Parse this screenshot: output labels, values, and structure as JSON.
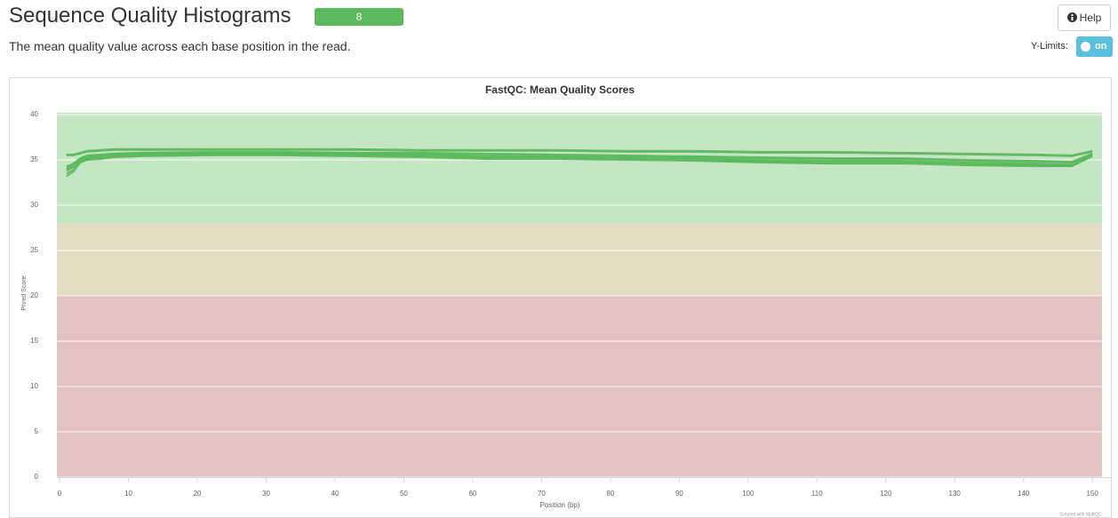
{
  "header": {
    "title": "Sequence Quality Histograms",
    "badge": "8",
    "description": "The mean quality value across each base position in the read.",
    "help": "Help",
    "ylimits_label": "Y-Limits:",
    "toggle": "on"
  },
  "chart_data": {
    "type": "line",
    "title": "FastQC: Mean Quality Scores",
    "x_label": "Position (bp)",
    "y_label": "Phred Score",
    "credit": "Created with MultiQC",
    "x": [
      1,
      2,
      3,
      4,
      6,
      8,
      12,
      22,
      32,
      42,
      52,
      62,
      72,
      82,
      92,
      102,
      112,
      122,
      132,
      142,
      147,
      150
    ],
    "series": [
      {
        "color": "#5cb85c",
        "values": [
          35.6,
          35.6,
          35.8,
          36.0,
          36.1,
          36.2,
          36.2,
          36.2,
          36.2,
          36.2,
          36.1,
          36.1,
          36.1,
          36.0,
          36.0,
          35.9,
          35.9,
          35.8,
          35.7,
          35.6,
          35.5,
          36.0
        ]
      },
      {
        "color": "#5cb85c",
        "values": [
          35.5,
          35.5,
          35.7,
          35.9,
          36.0,
          36.1,
          36.1,
          36.1,
          36.1,
          36.1,
          36.0,
          36.0,
          36.0,
          35.9,
          35.9,
          35.8,
          35.8,
          35.7,
          35.6,
          35.5,
          35.4,
          35.9
        ]
      },
      {
        "color": "#5cb85c",
        "values": [
          34.3,
          34.6,
          35.2,
          35.5,
          35.6,
          35.7,
          35.8,
          35.9,
          35.9,
          35.8,
          35.8,
          35.7,
          35.6,
          35.5,
          35.4,
          35.3,
          35.2,
          35.2,
          35.0,
          34.9,
          34.8,
          35.7
        ]
      },
      {
        "color": "#5cb85c",
        "values": [
          34.1,
          34.5,
          35.1,
          35.4,
          35.5,
          35.7,
          35.8,
          35.8,
          35.8,
          35.8,
          35.7,
          35.6,
          35.5,
          35.4,
          35.3,
          35.2,
          35.1,
          35.1,
          34.9,
          34.8,
          34.7,
          35.6
        ]
      },
      {
        "color": "#5cb85c",
        "values": [
          34.0,
          34.3,
          35.0,
          35.3,
          35.4,
          35.6,
          35.7,
          35.7,
          35.7,
          35.7,
          35.6,
          35.4,
          35.4,
          35.3,
          35.2,
          35.0,
          34.9,
          34.9,
          34.7,
          34.6,
          34.5,
          35.6
        ]
      },
      {
        "color": "#5cb85c",
        "values": [
          33.8,
          34.2,
          34.9,
          35.2,
          35.3,
          35.5,
          35.6,
          35.7,
          35.7,
          35.6,
          35.5,
          35.3,
          35.3,
          35.2,
          35.1,
          34.9,
          34.8,
          34.8,
          34.6,
          34.5,
          34.4,
          35.5
        ]
      },
      {
        "color": "#5cb85c",
        "values": [
          33.5,
          33.9,
          34.8,
          35.1,
          35.2,
          35.4,
          35.5,
          35.6,
          35.6,
          35.5,
          35.4,
          35.2,
          35.2,
          35.1,
          35.0,
          34.8,
          34.7,
          34.7,
          34.5,
          34.4,
          34.3,
          35.5
        ]
      },
      {
        "color": "#5cb85c",
        "values": [
          33.2,
          33.7,
          34.7,
          35.0,
          35.1,
          35.3,
          35.4,
          35.5,
          35.5,
          35.4,
          35.3,
          35.1,
          35.1,
          35.0,
          34.9,
          34.7,
          34.6,
          34.6,
          34.4,
          34.3,
          34.3,
          35.4
        ]
      }
    ],
    "bands": [
      {
        "from": 28,
        "to": 40,
        "color": "#c4e6c4"
      },
      {
        "from": 20,
        "to": 28,
        "color": "#e5dcc5"
      },
      {
        "from": 0,
        "to": 20,
        "color": "#e4c3c3"
      }
    ],
    "xlim": [
      -0.4,
      151.4
    ],
    "xticks": [
      0,
      10,
      20,
      30,
      40,
      50,
      60,
      70,
      80,
      90,
      100,
      110,
      120,
      130,
      140,
      150
    ],
    "ylim": [
      0,
      40
    ],
    "yticks": [
      0,
      5,
      10,
      15,
      20,
      25,
      30,
      35,
      40
    ],
    "grid": true
  }
}
